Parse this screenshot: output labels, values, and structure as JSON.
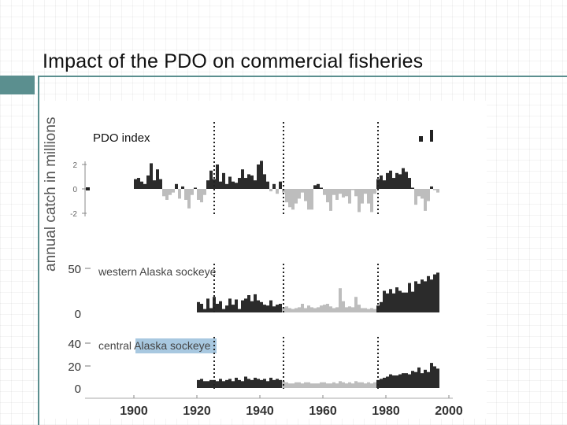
{
  "slide": {
    "title": "Impact of the PDO on commercial fisheries"
  },
  "colors": {
    "accent": "#5b8f8f",
    "positive_bar": "#2b2b2b",
    "negative_bar": "#bdbdbd",
    "highlight": "#a8c8e0"
  },
  "chart_data": {
    "type": "bar",
    "ylabel": "annual catch in millions",
    "xticks": [
      "1900",
      "1920",
      "1940",
      "1960",
      "1980",
      "2000"
    ],
    "xlim": [
      1900,
      2000
    ],
    "regime_shifts": [
      1925,
      1947,
      1977
    ],
    "panels": [
      {
        "label": "PDO index",
        "yticks": [
          "2",
          "0",
          "-2"
        ],
        "ylim": [
          -3,
          3
        ],
        "years": [
          1900,
          1901,
          1902,
          1903,
          1904,
          1905,
          1906,
          1907,
          1908,
          1909,
          1910,
          1911,
          1912,
          1913,
          1914,
          1915,
          1916,
          1917,
          1918,
          1919,
          1920,
          1921,
          1922,
          1923,
          1924,
          1925,
          1926,
          1927,
          1928,
          1929,
          1930,
          1931,
          1932,
          1933,
          1934,
          1935,
          1936,
          1937,
          1938,
          1939,
          1940,
          1941,
          1942,
          1943,
          1944,
          1945,
          1946,
          1947,
          1948,
          1949,
          1950,
          1951,
          1952,
          1953,
          1954,
          1955,
          1956,
          1957,
          1958,
          1959,
          1960,
          1961,
          1962,
          1963,
          1964,
          1965,
          1966,
          1967,
          1968,
          1969,
          1970,
          1971,
          1972,
          1973,
          1974,
          1975,
          1976,
          1977,
          1978,
          1979,
          1980,
          1981,
          1982,
          1983,
          1984,
          1985,
          1986,
          1987,
          1988,
          1989,
          1990,
          1991,
          1992,
          1993,
          1994,
          1995,
          1996
        ],
        "values": [
          0.8,
          0.9,
          0.6,
          0.4,
          1.1,
          2.1,
          0.7,
          1.6,
          0.8,
          -0.6,
          -0.9,
          -0.5,
          -0.3,
          0.4,
          -0.8,
          0.2,
          -0.9,
          -1.6,
          -0.5,
          0.1,
          -0.9,
          -1.1,
          -0.5,
          0.7,
          1.5,
          0.8,
          2.0,
          0.6,
          1.3,
          0.4,
          1.0,
          0.6,
          0.5,
          0.9,
          1.6,
          0.9,
          1.2,
          1.1,
          0.7,
          2.0,
          2.3,
          1.2,
          0.6,
          -0.2,
          0.4,
          -0.4,
          0.6,
          -0.3,
          -1.1,
          -1.5,
          -1.7,
          -1.2,
          -0.8,
          -0.3,
          -1.0,
          -1.7,
          -1.7,
          0.3,
          0.4,
          0.1,
          -0.5,
          -1.1,
          -1.8,
          -0.5,
          -0.9,
          -0.4,
          -0.7,
          -0.6,
          -1.2,
          -0.1,
          -0.6,
          -1.9,
          -1.2,
          -0.4,
          -1.2,
          -1.9,
          -0.4,
          0.8,
          1.1,
          0.7,
          1.3,
          1.5,
          0.9,
          1.3,
          1.2,
          1.7,
          1.4,
          0.9,
          0.1,
          -1.3,
          -0.6,
          -0.8,
          -1.8,
          -1.0,
          0.2,
          -0.1,
          -0.3
        ]
      },
      {
        "label": "western Alaska sockeye",
        "yticks": [
          "50",
          "0"
        ],
        "ylim": [
          0,
          50
        ],
        "highlight": false,
        "years": [
          1920,
          1921,
          1922,
          1923,
          1924,
          1925,
          1926,
          1927,
          1928,
          1929,
          1930,
          1931,
          1932,
          1933,
          1934,
          1935,
          1936,
          1937,
          1938,
          1939,
          1940,
          1941,
          1942,
          1943,
          1944,
          1945,
          1946,
          1947,
          1948,
          1949,
          1950,
          1951,
          1952,
          1953,
          1954,
          1955,
          1956,
          1957,
          1958,
          1959,
          1960,
          1961,
          1962,
          1963,
          1964,
          1965,
          1966,
          1967,
          1968,
          1969,
          1970,
          1971,
          1972,
          1973,
          1974,
          1975,
          1976,
          1977,
          1978,
          1979,
          1980,
          1981,
          1982,
          1983,
          1984,
          1985,
          1986,
          1987,
          1988,
          1989,
          1990,
          1991,
          1992,
          1993,
          1994,
          1995,
          1996
        ],
        "values": [
          12,
          10,
          4,
          16,
          5,
          18,
          10,
          13,
          4,
          8,
          16,
          9,
          15,
          4,
          14,
          16,
          20,
          13,
          21,
          14,
          12,
          9,
          8,
          14,
          7,
          9,
          10,
          6,
          7,
          5,
          4,
          5,
          6,
          10,
          5,
          8,
          6,
          5,
          6,
          8,
          9,
          10,
          7,
          5,
          6,
          28,
          13,
          6,
          7,
          6,
          18,
          9,
          5,
          5,
          4,
          5,
          4,
          8,
          12,
          25,
          22,
          27,
          22,
          29,
          25,
          23,
          23,
          34,
          24,
          36,
          33,
          38,
          36,
          42,
          38,
          44,
          46
        ]
      },
      {
        "label": "central Alaska sockeye",
        "yticks": [
          "40",
          "20",
          "0"
        ],
        "ylim": [
          0,
          40
        ],
        "highlight": true,
        "years": [
          1920,
          1921,
          1922,
          1923,
          1924,
          1925,
          1926,
          1927,
          1928,
          1929,
          1930,
          1931,
          1932,
          1933,
          1934,
          1935,
          1936,
          1937,
          1938,
          1939,
          1940,
          1941,
          1942,
          1943,
          1944,
          1945,
          1946,
          1947,
          1948,
          1949,
          1950,
          1951,
          1952,
          1953,
          1954,
          1955,
          1956,
          1957,
          1958,
          1959,
          1960,
          1961,
          1962,
          1963,
          1964,
          1965,
          1966,
          1967,
          1968,
          1969,
          1970,
          1971,
          1972,
          1973,
          1974,
          1975,
          1976,
          1977,
          1978,
          1979,
          1980,
          1981,
          1982,
          1983,
          1984,
          1985,
          1986,
          1987,
          1988,
          1989,
          1990,
          1991,
          1992,
          1993,
          1994,
          1995,
          1996
        ],
        "values": [
          7,
          8,
          6,
          6,
          7,
          7,
          6,
          8,
          6,
          7,
          8,
          6,
          9,
          7,
          6,
          10,
          8,
          7,
          9,
          8,
          7,
          8,
          6,
          9,
          7,
          8,
          7,
          6,
          5,
          4,
          4,
          5,
          5,
          4,
          5,
          5,
          4,
          4,
          4,
          5,
          5,
          4,
          4,
          5,
          4,
          6,
          5,
          4,
          5,
          4,
          6,
          5,
          5,
          4,
          5,
          4,
          5,
          7,
          8,
          9,
          10,
          12,
          11,
          11,
          12,
          13,
          13,
          12,
          15,
          14,
          18,
          13,
          16,
          14,
          22,
          19,
          17
        ]
      }
    ]
  }
}
